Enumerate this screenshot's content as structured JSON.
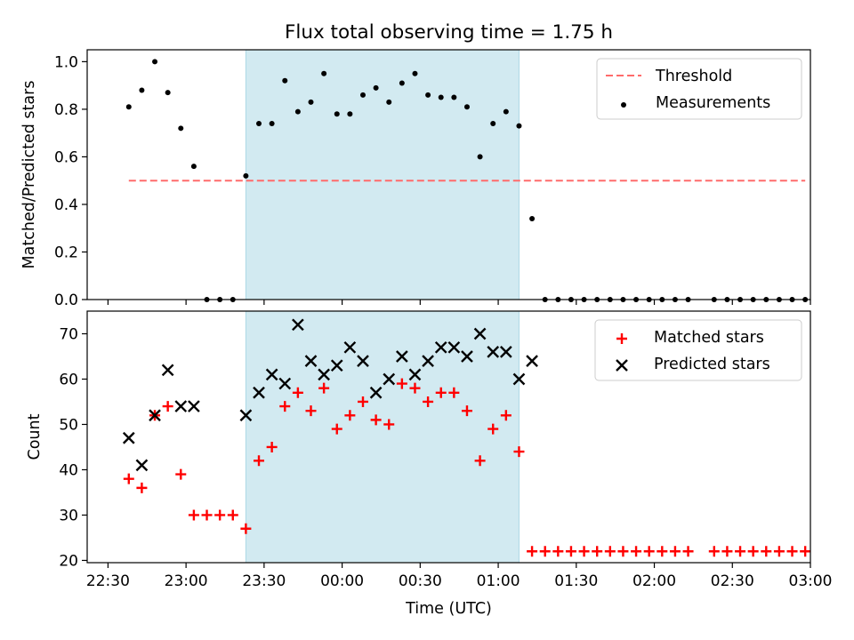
{
  "figure": {
    "title": "Flux total observing time = 1.75 h",
    "xlabel": "Time (UTC)"
  },
  "colors": {
    "background": "#ffffff",
    "span": "#add8e6",
    "threshold": "#ff6b6b",
    "measurements": "#000000",
    "matched": "#ff0000",
    "predicted": "#000000"
  },
  "chart_data": [
    {
      "type": "scatter",
      "title": "Flux total observing time = 1.75 h",
      "ylabel": "Matched/Predicted stars",
      "xlabel": "",
      "ylim": [
        0,
        1.05
      ],
      "yticks": [
        0.0,
        0.2,
        0.4,
        0.6,
        0.8,
        1.0
      ],
      "ytick_labels": [
        "0.0",
        "0.2",
        "0.4",
        "0.6",
        "0.8",
        "1.0"
      ],
      "xlim": [
        "22:22",
        "03:00"
      ],
      "shaded_span": [
        "23:23",
        "01:08"
      ],
      "legend_position": "top-right",
      "threshold": {
        "name": "Threshold",
        "x": [
          "22:38",
          "02:58"
        ],
        "y": 0.5,
        "style": "dashed"
      },
      "series": [
        {
          "name": "Measurements",
          "marker": "dot",
          "x": [
            "22:38",
            "22:43",
            "22:48",
            "22:53",
            "22:58",
            "23:03",
            "23:08",
            "23:13",
            "23:18",
            "23:23",
            "23:28",
            "23:33",
            "23:38",
            "23:43",
            "23:48",
            "23:53",
            "23:58",
            "00:03",
            "00:08",
            "00:13",
            "00:18",
            "00:23",
            "00:28",
            "00:33",
            "00:38",
            "00:43",
            "00:48",
            "00:53",
            "00:58",
            "01:03",
            "01:08",
            "01:13",
            "01:18",
            "01:23",
            "01:28",
            "01:33",
            "01:38",
            "01:43",
            "01:48",
            "01:53",
            "01:58",
            "02:03",
            "02:08",
            "02:13",
            "02:23",
            "02:28",
            "02:33",
            "02:38",
            "02:43",
            "02:48",
            "02:53",
            "02:58"
          ],
          "y": [
            0.81,
            0.88,
            1.0,
            0.87,
            0.72,
            0.56,
            0,
            0,
            0,
            0.52,
            0.74,
            0.74,
            0.92,
            0.79,
            0.83,
            0.95,
            0.78,
            0.78,
            0.86,
            0.89,
            0.83,
            0.91,
            0.95,
            0.86,
            0.85,
            0.85,
            0.81,
            0.6,
            0.74,
            0.79,
            0.73,
            0.34,
            0,
            0,
            0,
            0,
            0,
            0,
            0,
            0,
            0,
            0,
            0,
            0,
            0,
            0,
            0,
            0,
            0,
            0,
            0,
            0
          ]
        }
      ]
    },
    {
      "type": "scatter",
      "title": "",
      "ylabel": "Count",
      "xlabel": "Time (UTC)",
      "ylim": [
        19.5,
        75
      ],
      "yticks": [
        20,
        30,
        40,
        50,
        60,
        70
      ],
      "ytick_labels": [
        "20",
        "30",
        "40",
        "50",
        "60",
        "70"
      ],
      "xlim": [
        "22:22",
        "03:00"
      ],
      "xticks": [
        "22:30",
        "23:00",
        "23:30",
        "00:00",
        "00:30",
        "01:00",
        "01:30",
        "02:00",
        "02:30",
        "03:00"
      ],
      "shaded_span": [
        "23:23",
        "01:08"
      ],
      "legend_position": "top-right",
      "series": [
        {
          "name": "Matched stars",
          "marker": "plus",
          "x": [
            "22:38",
            "22:43",
            "22:48",
            "22:53",
            "22:58",
            "23:03",
            "23:08",
            "23:13",
            "23:18",
            "23:23",
            "23:28",
            "23:33",
            "23:38",
            "23:43",
            "23:48",
            "23:53",
            "23:58",
            "00:03",
            "00:08",
            "00:13",
            "00:18",
            "00:23",
            "00:28",
            "00:33",
            "00:38",
            "00:43",
            "00:48",
            "00:53",
            "00:58",
            "01:03",
            "01:08",
            "01:13",
            "01:18",
            "01:23",
            "01:28",
            "01:33",
            "01:38",
            "01:43",
            "01:48",
            "01:53",
            "01:58",
            "02:03",
            "02:08",
            "02:13",
            "02:23",
            "02:28",
            "02:33",
            "02:38",
            "02:43",
            "02:48",
            "02:53",
            "02:58"
          ],
          "y": [
            38,
            36,
            52,
            54,
            39,
            30,
            30,
            30,
            30,
            27,
            42,
            45,
            54,
            57,
            53,
            58,
            49,
            52,
            55,
            51,
            50,
            59,
            58,
            55,
            57,
            57,
            53,
            42,
            49,
            52,
            44,
            22,
            22,
            22,
            22,
            22,
            22,
            22,
            22,
            22,
            22,
            22,
            22,
            22,
            22,
            22,
            22,
            22,
            22,
            22,
            22,
            22
          ]
        },
        {
          "name": "Predicted stars",
          "marker": "x",
          "x": [
            "22:38",
            "22:43",
            "22:48",
            "22:53",
            "22:58",
            "23:03",
            "23:23",
            "23:28",
            "23:33",
            "23:38",
            "23:43",
            "23:48",
            "23:53",
            "23:58",
            "00:03",
            "00:08",
            "00:13",
            "00:18",
            "00:23",
            "00:28",
            "00:33",
            "00:38",
            "00:43",
            "00:48",
            "00:53",
            "00:58",
            "01:03",
            "01:08",
            "01:13"
          ],
          "y": [
            47,
            41,
            52,
            62,
            54,
            54,
            52,
            57,
            61,
            59,
            72,
            64,
            61,
            63,
            67,
            64,
            57,
            60,
            65,
            61,
            64,
            67,
            67,
            65,
            70,
            66,
            66,
            60,
            64
          ]
        }
      ]
    }
  ]
}
